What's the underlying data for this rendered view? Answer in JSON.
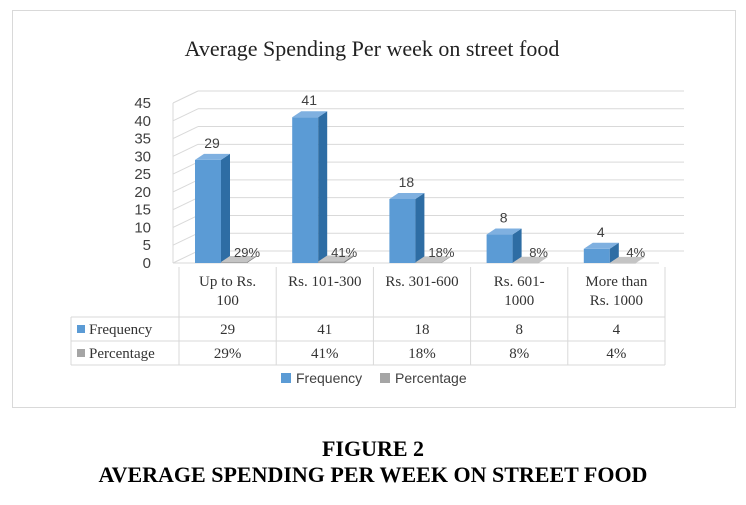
{
  "figure_label": "FIGURE 2",
  "figure_title": "AVERAGE SPENDING PER WEEK ON STREET FOOD",
  "colors": {
    "frequency_front": "#5b9bd5",
    "frequency_side": "#2e6da4",
    "frequency_top": "#7fb0e0",
    "percentage_front": "#a5a5a5",
    "percentage_side": "#7f7f7f",
    "percentage_top": "#c4c4c4",
    "grid": "#d9d9d9",
    "text": "#404040"
  },
  "chart_data": {
    "type": "bar",
    "title": "Average Spending Per week on street food",
    "categories": [
      [
        "Up to Rs.",
        "100"
      ],
      [
        "Rs. 101-300"
      ],
      [
        "Rs. 301-600"
      ],
      [
        "Rs. 601-",
        "1000"
      ],
      [
        "More than",
        "Rs. 1000"
      ]
    ],
    "series": [
      {
        "name": "Frequency",
        "values": [
          29,
          41,
          18,
          8,
          4
        ],
        "labels": [
          "29",
          "41",
          "18",
          "8",
          "4"
        ]
      },
      {
        "name": "Percentage",
        "values": [
          0.29,
          0.41,
          0.18,
          0.08,
          0.04
        ],
        "labels": [
          "29%",
          "41%",
          "18%",
          "8%",
          "4%"
        ]
      }
    ],
    "table_values": {
      "Frequency": [
        "29",
        "41",
        "18",
        "8",
        "4"
      ],
      "Percentage": [
        "29%",
        "41%",
        "18%",
        "8%",
        "4%"
      ]
    },
    "ylim": [
      0,
      45
    ],
    "yticks": [
      "0",
      "5",
      "10",
      "15",
      "20",
      "25",
      "30",
      "35",
      "40",
      "45"
    ],
    "grid": true,
    "legend": "bottom"
  }
}
